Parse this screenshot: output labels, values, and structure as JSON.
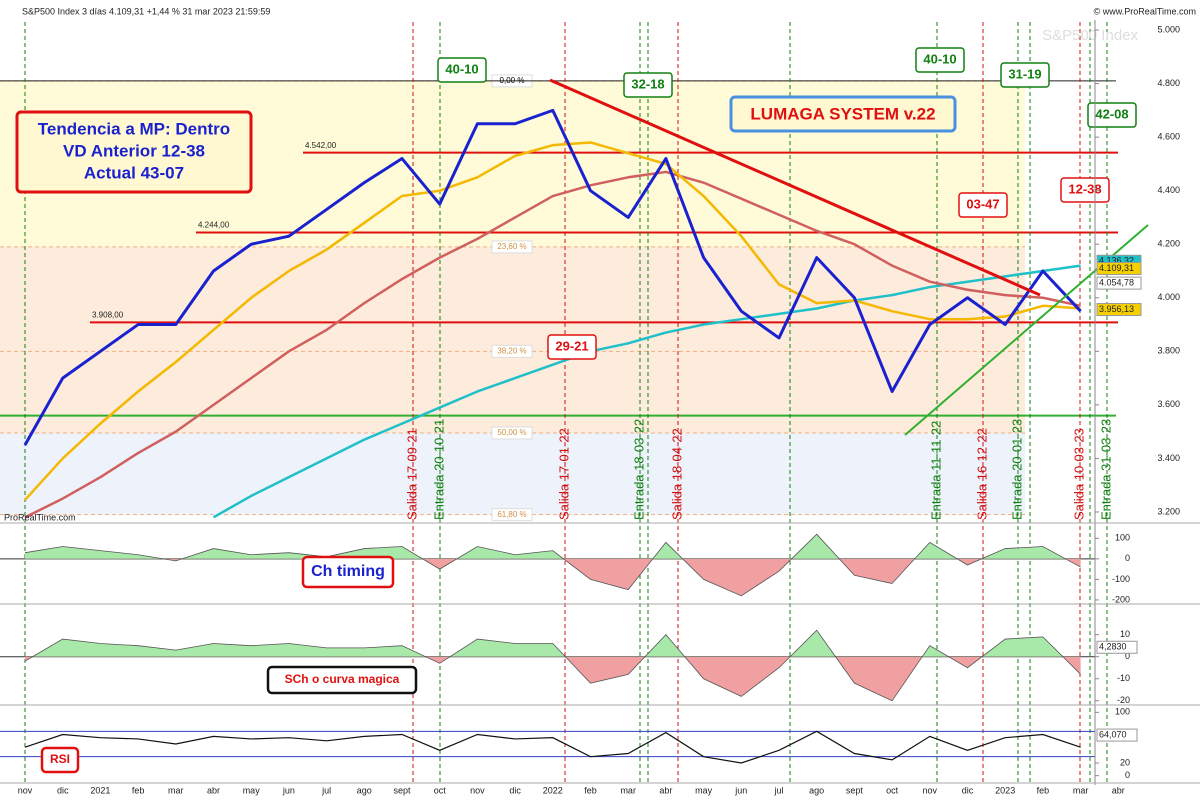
{
  "header": {
    "title": "S&P500 Index 3 días 4.109,31 +1,44 % 31 mar 2023 21:59:59",
    "site": "© www.ProRealTime.com",
    "watermark": "S&P500 Index",
    "footer": "ProRealTime.com"
  },
  "chart_data": {
    "type": "line",
    "categories": [
      "nov",
      "dic",
      "2021",
      "feb",
      "mar",
      "abr",
      "may",
      "jun",
      "jul",
      "ago",
      "sept",
      "oct",
      "nov",
      "dic",
      "2022",
      "feb",
      "mar",
      "abr",
      "may",
      "jun",
      "jul",
      "ago",
      "sept",
      "oct",
      "nov",
      "dic",
      "2023",
      "feb",
      "mar",
      "abr"
    ],
    "ylim": [
      3170,
      5030
    ],
    "yticks": [
      {
        "value": 3200,
        "label": "3.200"
      },
      {
        "value": 3400,
        "label": "3.400"
      },
      {
        "value": 3600,
        "label": "3.600"
      },
      {
        "value": 3800,
        "label": "3.800"
      },
      {
        "value": 4000,
        "label": "4.000"
      },
      {
        "value": 4200,
        "label": "4.200"
      },
      {
        "value": 4400,
        "label": "4.400"
      },
      {
        "value": 4600,
        "label": "4.600"
      },
      {
        "value": 4800,
        "label": "4.800"
      },
      {
        "value": 5000,
        "label": "5.000"
      }
    ],
    "series": [
      {
        "name": "price",
        "color": "#1a22d0",
        "values": [
          3450,
          3700,
          3800,
          3900,
          3900,
          4100,
          4200,
          4230,
          4330,
          4430,
          4520,
          4350,
          4650,
          4650,
          4700,
          4400,
          4300,
          4520,
          4150,
          3950,
          3850,
          4150,
          4000,
          3650,
          3900,
          4000,
          3900,
          4100,
          3950,
          null
        ]
      },
      {
        "name": "ma-yellow",
        "color": "#f5b800",
        "values": [
          3245,
          3400,
          3530,
          3650,
          3760,
          3880,
          4000,
          4100,
          4180,
          4280,
          4380,
          4400,
          4450,
          4530,
          4570,
          4580,
          4540,
          4500,
          4380,
          4230,
          4050,
          3980,
          3990,
          3950,
          3920,
          3920,
          3930,
          3970,
          3960,
          null
        ]
      },
      {
        "name": "ma-red",
        "color": "#d06060",
        "values": [
          3180,
          3250,
          3330,
          3420,
          3500,
          3600,
          3700,
          3800,
          3880,
          3980,
          4070,
          4150,
          4220,
          4300,
          4380,
          4420,
          4450,
          4470,
          4430,
          4370,
          4310,
          4250,
          4200,
          4120,
          4060,
          4030,
          4010,
          4000,
          3970,
          null
        ]
      },
      {
        "name": "ma-cyan",
        "color": "#20c0c8",
        "values": [
          null,
          null,
          null,
          null,
          null,
          3180,
          3260,
          3330,
          3400,
          3470,
          3530,
          3590,
          3650,
          3700,
          3750,
          3800,
          3830,
          3870,
          3900,
          3920,
          3940,
          3960,
          3990,
          4010,
          4040,
          4060,
          4080,
          4100,
          4120,
          null
        ]
      }
    ],
    "levels": [
      {
        "value": 4542,
        "label": "4.542,00"
      },
      {
        "value": 4244,
        "label": "4.244,00"
      },
      {
        "value": 3908,
        "label": "3.908,00"
      }
    ],
    "support": 3560,
    "top_level": 4810,
    "fib": [
      {
        "value": 4810,
        "label": "0,00 %"
      },
      {
        "value": 4190,
        "label": "23,60 %"
      },
      {
        "value": 3800,
        "label": "38,20 %"
      },
      {
        "value": 3495,
        "label": "50,00 %"
      },
      {
        "value": 3190,
        "label": "61,80 %"
      }
    ],
    "price_tags": [
      {
        "value": 4136.32,
        "label": "4.136,32",
        "color": "#20c0c8"
      },
      {
        "value": 4109.31,
        "label": "4.109,31",
        "color": "#f5d000"
      },
      {
        "value": 4054.78,
        "label": "4.054,78",
        "color": "#ffffff"
      },
      {
        "value": 3956.13,
        "label": "3.956,13",
        "color": "#f5d000"
      }
    ],
    "signals": [
      {
        "label": "Salida 17-09-21",
        "color": "#d01010"
      },
      {
        "label": "Entrada 20-10-21",
        "color": "#108010"
      },
      {
        "label": "Salida 17-01-22",
        "color": "#d01010"
      },
      {
        "label": "Entrada 18-03-22",
        "color": "#108010"
      },
      {
        "label": "Salida 18-04-22",
        "color": "#d01010"
      },
      {
        "label": "Entrada 11-11-22",
        "color": "#108010"
      },
      {
        "label": "Salida 16-12-22",
        "color": "#d01010"
      },
      {
        "label": "Entrada 20-01-23",
        "color": "#108010"
      },
      {
        "label": "Salida 10-03-23",
        "color": "#d01010"
      },
      {
        "label": "Entrada 31-03-23",
        "color": "#108010"
      }
    ],
    "boxes": {
      "trend": [
        "Tendencia a MP: Dentro",
        "VD Anterior 12-38",
        "Actual 43-07"
      ],
      "system": "LUMAGA SYSTEM v.22",
      "green": [
        "40-10",
        "32-18",
        "40-10",
        "31-19",
        "42-08"
      ],
      "red": [
        "03-47",
        "12-38",
        "29-21"
      ]
    },
    "panels": [
      {
        "name": "Ch timing",
        "ylim": [
          -215,
          155
        ],
        "yticks": [
          -200,
          -100,
          0,
          100
        ],
        "values": [
          30,
          60,
          40,
          20,
          -10,
          50,
          20,
          30,
          10,
          50,
          60,
          -50,
          60,
          20,
          40,
          -100,
          -150,
          80,
          -100,
          -180,
          -60,
          120,
          -80,
          -120,
          80,
          -30,
          50,
          60,
          -40,
          null
        ]
      },
      {
        "name": "SCh o curva magica",
        "ylim": [
          -21,
          23
        ],
        "yticks": [
          -20,
          -10,
          0,
          10
        ],
        "tag": {
          "value": 4.283,
          "label": "4,2830"
        },
        "values": [
          -2,
          8,
          6,
          5,
          3,
          6,
          5,
          6,
          4,
          4,
          5,
          -3,
          8,
          6,
          6,
          -12,
          -8,
          10,
          -10,
          -18,
          -5,
          12,
          -12,
          -20,
          5,
          -5,
          8,
          9,
          -8,
          null
        ]
      },
      {
        "name": "RSI",
        "ylim": [
          -10,
          110
        ],
        "yticks": [
          0,
          20,
          100
        ],
        "bands": [
          30,
          70
        ],
        "tag": {
          "value": 64.07,
          "label": "64,070"
        },
        "values": [
          45,
          65,
          60,
          58,
          50,
          62,
          58,
          60,
          55,
          62,
          65,
          40,
          65,
          58,
          60,
          30,
          35,
          68,
          30,
          20,
          40,
          70,
          35,
          25,
          62,
          40,
          60,
          65,
          45,
          null
        ]
      }
    ]
  }
}
